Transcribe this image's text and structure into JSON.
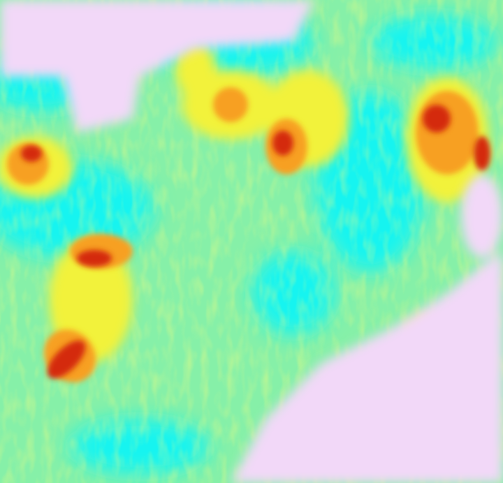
{
  "image": {
    "description_colors": {
      "background": "#86f0a8",
      "cyan": "#14f4f0",
      "yellow": "#f2f23a",
      "orange": "#f7a020",
      "red": "#d42a10",
      "dark_red": "#9a0a08",
      "cloud": "#f2d8f8"
    }
  }
}
